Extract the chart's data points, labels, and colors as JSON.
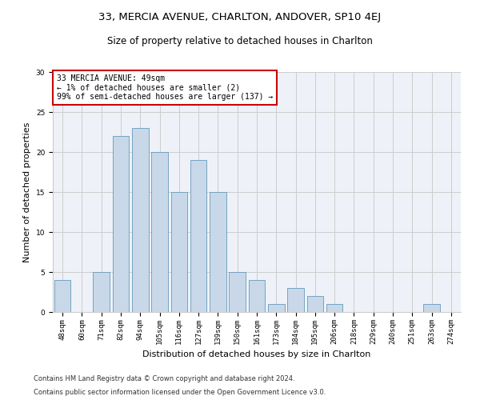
{
  "title1": "33, MERCIA AVENUE, CHARLTON, ANDOVER, SP10 4EJ",
  "title2": "Size of property relative to detached houses in Charlton",
  "xlabel": "Distribution of detached houses by size in Charlton",
  "ylabel": "Number of detached properties",
  "categories": [
    "48sqm",
    "60sqm",
    "71sqm",
    "82sqm",
    "94sqm",
    "105sqm",
    "116sqm",
    "127sqm",
    "139sqm",
    "150sqm",
    "161sqm",
    "173sqm",
    "184sqm",
    "195sqm",
    "206sqm",
    "218sqm",
    "229sqm",
    "240sqm",
    "251sqm",
    "263sqm",
    "274sqm"
  ],
  "values": [
    4,
    0,
    5,
    22,
    23,
    20,
    15,
    19,
    15,
    5,
    4,
    1,
    3,
    2,
    1,
    0,
    0,
    0,
    0,
    1,
    0
  ],
  "bar_color": "#c8d8e8",
  "bar_edge_color": "#6699bb",
  "annotation_text": "33 MERCIA AVENUE: 49sqm\n← 1% of detached houses are smaller (2)\n99% of semi-detached houses are larger (137) →",
  "annotation_box_color": "#ffffff",
  "annotation_box_edge_color": "#cc0000",
  "ylim": [
    0,
    30
  ],
  "yticks": [
    0,
    5,
    10,
    15,
    20,
    25,
    30
  ],
  "grid_color": "#cccccc",
  "bg_color": "#eef2f8",
  "footer1": "Contains HM Land Registry data © Crown copyright and database right 2024.",
  "footer2": "Contains public sector information licensed under the Open Government Licence v3.0.",
  "title1_fontsize": 9.5,
  "title2_fontsize": 8.5,
  "xlabel_fontsize": 8,
  "ylabel_fontsize": 8,
  "tick_fontsize": 6.5,
  "annotation_fontsize": 7,
  "footer_fontsize": 6
}
